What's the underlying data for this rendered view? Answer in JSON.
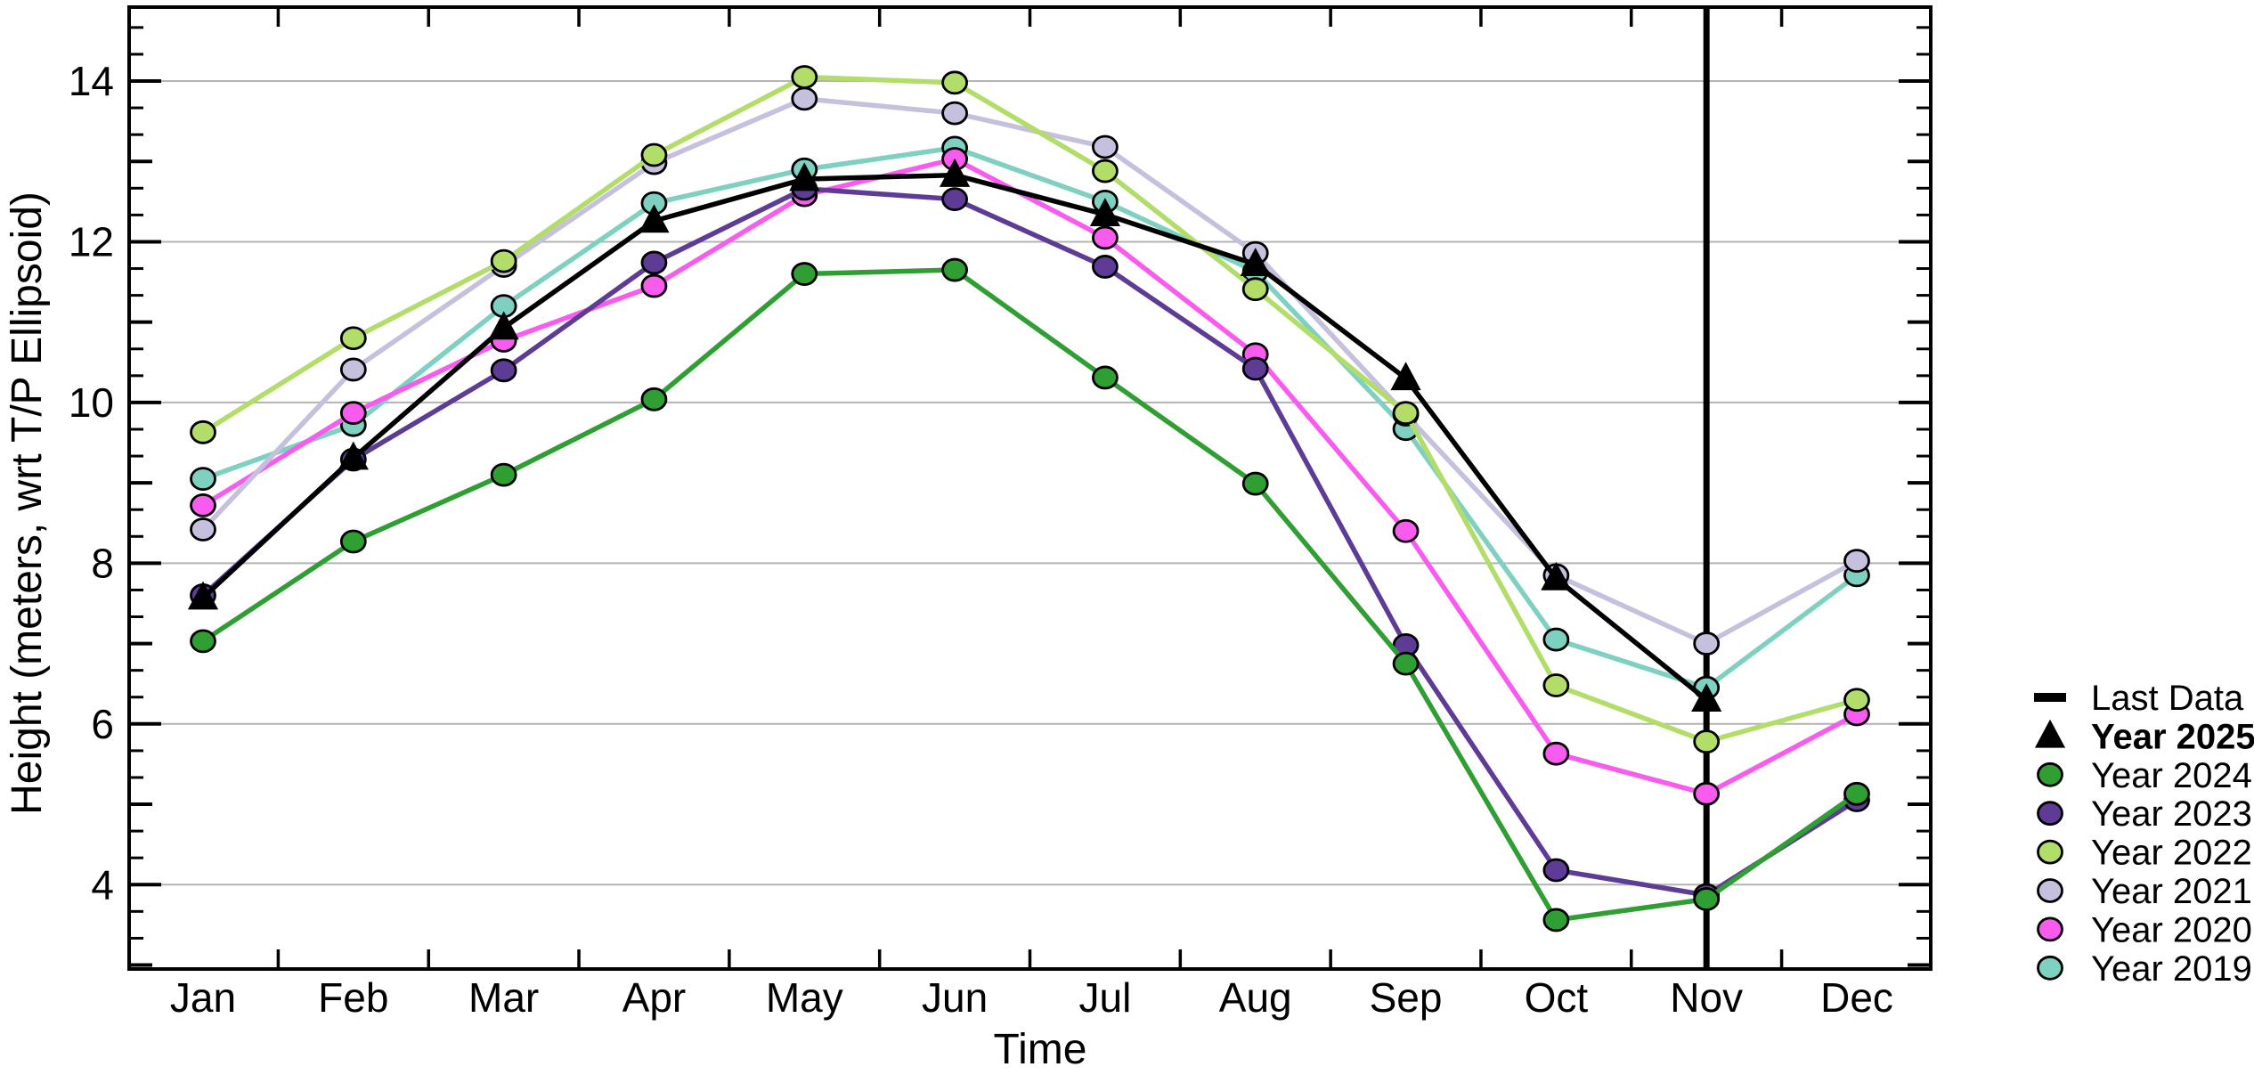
{
  "chart_data": {
    "type": "line",
    "title": "",
    "xlabel": "Time",
    "ylabel": "Height (meters, wrt T/P Ellipsoid)",
    "categories": [
      "Jan",
      "Feb",
      "Mar",
      "Apr",
      "May",
      "Jun",
      "Jul",
      "Aug",
      "Sep",
      "Oct",
      "Nov",
      "Dec"
    ],
    "ylim": [
      2.95,
      14.92
    ],
    "ytick_labels": [
      4,
      6,
      8,
      10,
      12,
      14
    ],
    "minor_tick_step": 0.3333,
    "grid": "horizontal-major",
    "gridline_color": "#b3b3b3",
    "axis_color": "#000000",
    "last_data": {
      "label": "Last Data",
      "month": "Nov",
      "color": "#000000"
    },
    "series": [
      {
        "name": "Year 2019",
        "color": "#7ed0c0",
        "marker": "circle",
        "bold": false,
        "values": [
          9.05,
          9.72,
          11.2,
          12.48,
          12.9,
          13.17,
          12.5,
          11.63,
          9.67,
          7.05,
          6.45,
          7.85
        ]
      },
      {
        "name": "Year 2020",
        "color": "#fa5bef",
        "marker": "circle",
        "bold": false,
        "values": [
          8.72,
          9.87,
          10.77,
          11.45,
          12.58,
          13.03,
          12.05,
          10.6,
          8.4,
          5.63,
          5.13,
          6.12
        ]
      },
      {
        "name": "Year 2021",
        "color": "#c5c0dd",
        "marker": "circle",
        "bold": false,
        "values": [
          8.42,
          10.41,
          11.7,
          12.98,
          13.78,
          13.6,
          13.18,
          11.86,
          9.85,
          7.85,
          7.0,
          8.03
        ]
      },
      {
        "name": "Year 2022",
        "color": "#b2dd68",
        "marker": "circle",
        "bold": false,
        "values": [
          9.63,
          10.8,
          11.76,
          13.08,
          14.05,
          13.98,
          12.88,
          11.41,
          9.87,
          6.48,
          5.78,
          6.3
        ]
      },
      {
        "name": "Year 2023",
        "color": "#5e3c96",
        "marker": "circle",
        "bold": false,
        "values": [
          7.6,
          9.29,
          10.4,
          11.74,
          12.66,
          12.53,
          11.69,
          10.42,
          6.98,
          4.18,
          3.87,
          5.05
        ]
      },
      {
        "name": "Year 2024",
        "color": "#2f9e33",
        "marker": "circle",
        "bold": false,
        "values": [
          7.03,
          8.27,
          9.1,
          10.04,
          11.6,
          11.65,
          10.31,
          8.99,
          6.75,
          3.56,
          3.82,
          5.13
        ]
      },
      {
        "name": "Year 2025",
        "color": "#000000",
        "marker": "triangle",
        "bold": true,
        "values": [
          7.57,
          9.31,
          10.93,
          12.26,
          12.78,
          12.83,
          12.34,
          11.72,
          10.3,
          7.81,
          6.3,
          null
        ]
      }
    ],
    "legend": {
      "position": "right",
      "items": [
        {
          "label": "Last Data",
          "marker": "dash",
          "color": "#000000",
          "bold": false
        },
        {
          "label": "Year 2025",
          "marker": "triangle",
          "color": "#000000",
          "bold": true
        },
        {
          "label": "Year 2024",
          "marker": "circle",
          "color": "#2f9e33",
          "bold": false
        },
        {
          "label": "Year 2023",
          "marker": "circle",
          "color": "#5e3c96",
          "bold": false
        },
        {
          "label": "Year 2022",
          "marker": "circle",
          "color": "#b2dd68",
          "bold": false
        },
        {
          "label": "Year 2021",
          "marker": "circle",
          "color": "#c5c0dd",
          "bold": false
        },
        {
          "label": "Year 2020",
          "marker": "circle",
          "color": "#fa5bef",
          "bold": false
        },
        {
          "label": "Year 2019",
          "marker": "circle",
          "color": "#7ed0c0",
          "bold": false
        }
      ]
    }
  }
}
